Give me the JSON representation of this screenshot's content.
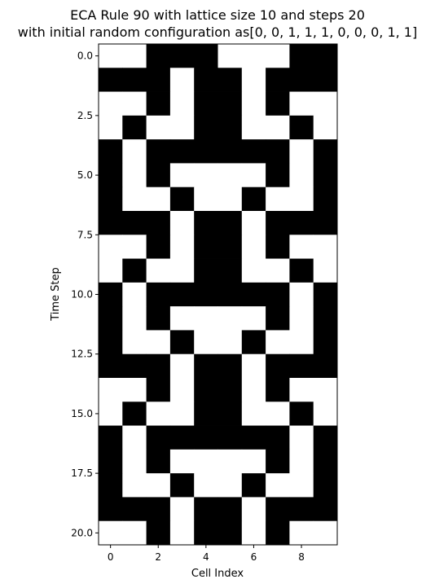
{
  "chart_data": {
    "type": "heatmap",
    "title_line1": "ECA Rule 90 with lattice size 10 and steps 20",
    "title_line2": "with initial random configuration as[0, 0, 1, 1, 1, 0, 0, 0, 1, 1]",
    "xlabel": "Cell Index",
    "ylabel": "Time Step",
    "x_ticks": [
      0,
      2,
      4,
      6,
      8
    ],
    "x_tick_labels": [
      "0",
      "2",
      "4",
      "6",
      "8"
    ],
    "y_ticks": [
      0,
      2.5,
      5,
      7.5,
      10,
      12.5,
      15,
      17.5,
      20
    ],
    "y_tick_labels": [
      "0.0",
      "2.5",
      "5.0",
      "7.5",
      "10.0",
      "12.5",
      "15.0",
      "17.5",
      "20.0"
    ],
    "xlim": [
      -0.5,
      9.5
    ],
    "ylim": [
      20.5,
      -0.5
    ],
    "colormap": {
      "0": "#ffffff",
      "1": "#000000"
    },
    "grid": [
      [
        0,
        0,
        1,
        1,
        1,
        0,
        0,
        0,
        1,
        1
      ],
      [
        1,
        1,
        1,
        0,
        1,
        1,
        0,
        1,
        1,
        1
      ],
      [
        0,
        0,
        1,
        0,
        1,
        1,
        0,
        1,
        0,
        0
      ],
      [
        0,
        1,
        0,
        0,
        1,
        1,
        0,
        0,
        1,
        0
      ],
      [
        1,
        0,
        1,
        1,
        1,
        1,
        1,
        1,
        0,
        1
      ],
      [
        1,
        0,
        1,
        0,
        0,
        0,
        0,
        1,
        0,
        1
      ],
      [
        1,
        0,
        0,
        1,
        0,
        0,
        1,
        0,
        0,
        1
      ],
      [
        1,
        1,
        1,
        0,
        1,
        1,
        0,
        1,
        1,
        1
      ],
      [
        0,
        0,
        1,
        0,
        1,
        1,
        0,
        1,
        0,
        0
      ],
      [
        0,
        1,
        0,
        0,
        1,
        1,
        0,
        0,
        1,
        0
      ],
      [
        1,
        0,
        1,
        1,
        1,
        1,
        1,
        1,
        0,
        1
      ],
      [
        1,
        0,
        1,
        0,
        0,
        0,
        0,
        1,
        0,
        1
      ],
      [
        1,
        0,
        0,
        1,
        0,
        0,
        1,
        0,
        0,
        1
      ],
      [
        1,
        1,
        1,
        0,
        1,
        1,
        0,
        1,
        1,
        1
      ],
      [
        0,
        0,
        1,
        0,
        1,
        1,
        0,
        1,
        0,
        0
      ],
      [
        0,
        1,
        0,
        0,
        1,
        1,
        0,
        0,
        1,
        0
      ],
      [
        1,
        0,
        1,
        1,
        1,
        1,
        1,
        1,
        0,
        1
      ],
      [
        1,
        0,
        1,
        0,
        0,
        0,
        0,
        1,
        0,
        1
      ],
      [
        1,
        0,
        0,
        1,
        0,
        0,
        1,
        0,
        0,
        1
      ],
      [
        1,
        1,
        1,
        0,
        1,
        1,
        0,
        1,
        1,
        1
      ],
      [
        0,
        0,
        1,
        0,
        1,
        1,
        0,
        1,
        0,
        0
      ]
    ]
  }
}
